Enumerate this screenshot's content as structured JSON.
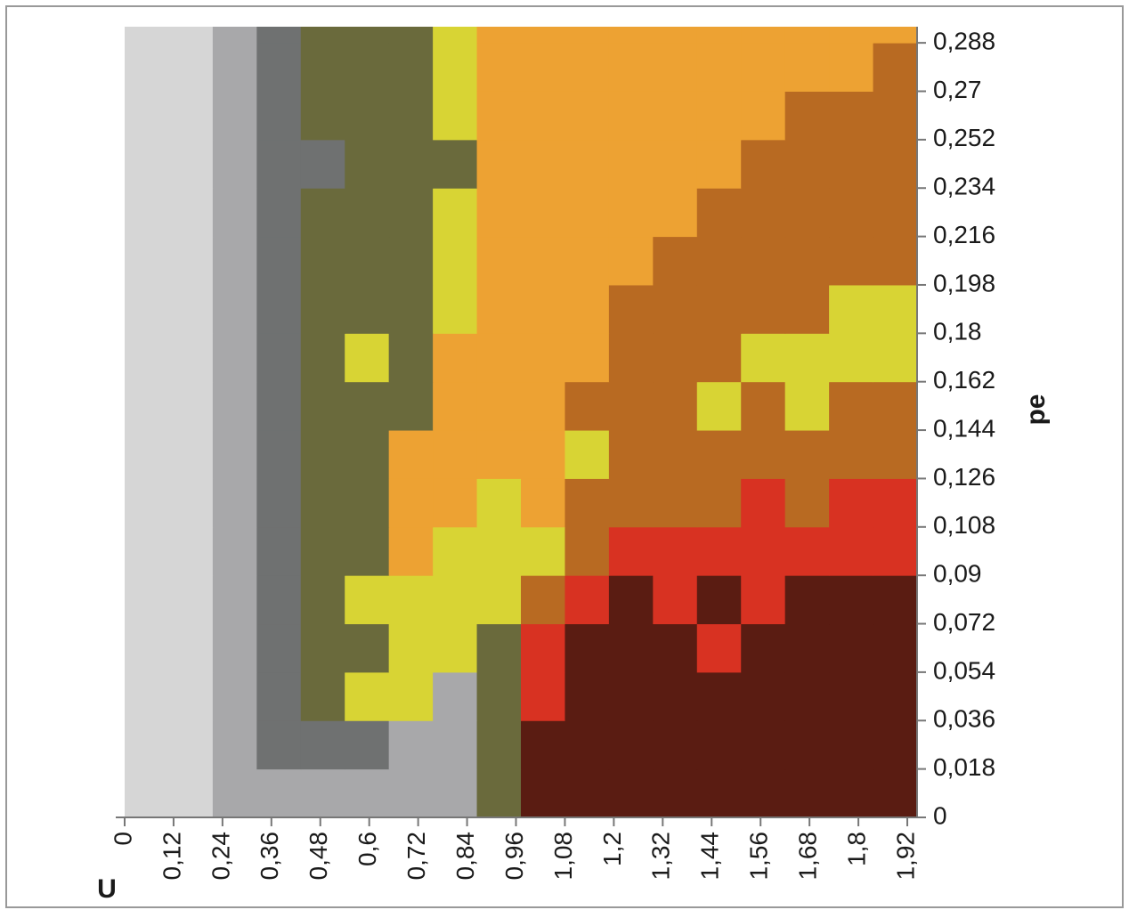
{
  "chart_data": {
    "type": "heatmap",
    "x_label": "U",
    "y_label": "pe",
    "xlim": [
      0,
      1.944
    ],
    "ylim": [
      0,
      0.294
    ],
    "xbins": [
      0,
      0.108,
      0.216,
      0.324,
      0.432,
      0.54,
      0.648,
      0.756,
      0.864,
      0.972,
      1.08,
      1.188,
      1.296,
      1.404,
      1.512,
      1.62,
      1.728,
      1.836,
      1.944
    ],
    "ybins": [
      0,
      0.018,
      0.036,
      0.054,
      0.072,
      0.09,
      0.108,
      0.126,
      0.144,
      0.162,
      0.18,
      0.198,
      0.216,
      0.234,
      0.252,
      0.27,
      0.288,
      0.294
    ],
    "colors": [
      "#d6d6d6",
      "#a8a8aa",
      "#6f7171",
      "#6a6a3c",
      "#d8d434",
      "#eda233",
      "#b86a22",
      "#d83222",
      "#5a1c12"
    ],
    "z": [
      [
        0,
        0,
        1,
        1,
        1,
        1,
        1,
        1,
        3,
        8,
        8,
        8,
        8,
        8,
        8,
        8,
        8,
        8
      ],
      [
        0,
        0,
        1,
        2,
        2,
        2,
        1,
        1,
        3,
        8,
        8,
        8,
        8,
        8,
        8,
        8,
        8,
        8
      ],
      [
        0,
        0,
        1,
        2,
        3,
        4,
        4,
        1,
        3,
        7,
        8,
        8,
        8,
        8,
        8,
        8,
        8,
        8
      ],
      [
        0,
        0,
        1,
        2,
        3,
        3,
        4,
        4,
        3,
        7,
        8,
        8,
        8,
        7,
        8,
        8,
        8,
        8
      ],
      [
        0,
        0,
        1,
        2,
        3,
        4,
        4,
        4,
        4,
        6,
        7,
        8,
        7,
        8,
        7,
        8,
        8,
        8
      ],
      [
        0,
        0,
        1,
        2,
        3,
        3,
        5,
        4,
        4,
        4,
        6,
        7,
        7,
        7,
        7,
        7,
        7,
        7
      ],
      [
        0,
        0,
        1,
        2,
        3,
        3,
        5,
        5,
        4,
        5,
        6,
        6,
        6,
        6,
        7,
        6,
        7,
        7
      ],
      [
        0,
        0,
        1,
        2,
        3,
        3,
        5,
        5,
        5,
        5,
        4,
        6,
        6,
        6,
        6,
        6,
        6,
        6
      ],
      [
        0,
        0,
        1,
        2,
        3,
        3,
        3,
        5,
        5,
        5,
        6,
        6,
        6,
        4,
        6,
        4,
        6,
        6
      ],
      [
        0,
        0,
        1,
        2,
        3,
        4,
        3,
        5,
        5,
        5,
        5,
        6,
        6,
        6,
        4,
        4,
        4,
        4
      ],
      [
        0,
        0,
        1,
        2,
        3,
        3,
        3,
        4,
        5,
        5,
        5,
        6,
        6,
        6,
        6,
        6,
        4,
        4
      ],
      [
        0,
        0,
        1,
        2,
        3,
        3,
        3,
        4,
        5,
        5,
        5,
        5,
        6,
        6,
        6,
        6,
        6,
        6
      ],
      [
        0,
        0,
        1,
        2,
        3,
        3,
        3,
        4,
        5,
        5,
        5,
        5,
        5,
        6,
        6,
        6,
        6,
        6
      ],
      [
        0,
        0,
        1,
        2,
        2,
        3,
        3,
        3,
        5,
        5,
        5,
        5,
        5,
        5,
        6,
        6,
        6,
        6
      ],
      [
        0,
        0,
        1,
        2,
        3,
        3,
        3,
        4,
        5,
        5,
        5,
        5,
        5,
        5,
        5,
        6,
        6,
        6
      ],
      [
        0,
        0,
        1,
        2,
        3,
        3,
        3,
        4,
        5,
        5,
        5,
        5,
        5,
        5,
        5,
        5,
        5,
        6
      ],
      [
        0,
        0,
        1,
        2,
        3,
        3,
        3,
        4,
        5,
        5,
        5,
        5,
        5,
        5,
        5,
        5,
        5,
        5
      ]
    ],
    "xticks": [
      0,
      {
        "value": 0.12,
        "label": "0,12"
      },
      {
        "value": 0.24,
        "label": "0,24"
      },
      {
        "value": 0.36,
        "label": "0,36"
      },
      {
        "value": 0.48,
        "label": "0,48"
      },
      {
        "value": 0.6,
        "label": "0,6"
      },
      {
        "value": 0.72,
        "label": "0,72"
      },
      {
        "value": 0.84,
        "label": "0,84"
      },
      {
        "value": 0.96,
        "label": "0,96"
      },
      {
        "value": 1.08,
        "label": "1,08"
      },
      {
        "value": 1.2,
        "label": "1,2"
      },
      {
        "value": 1.32,
        "label": "1,32"
      },
      {
        "value": 1.44,
        "label": "1,44"
      },
      {
        "value": 1.56,
        "label": "1,56"
      },
      {
        "value": 1.68,
        "label": "1,68"
      },
      {
        "value": 1.8,
        "label": "1,8"
      },
      {
        "value": 1.92,
        "label": "1,92"
      }
    ],
    "yticks": [
      0,
      {
        "value": 0.018,
        "label": "0,018"
      },
      {
        "value": 0.036,
        "label": "0,036"
      },
      {
        "value": 0.054,
        "label": "0,054"
      },
      {
        "value": 0.072,
        "label": "0,072"
      },
      {
        "value": 0.09,
        "label": "0,09"
      },
      {
        "value": 0.108,
        "label": "0,108"
      },
      {
        "value": 0.126,
        "label": "0,126"
      },
      {
        "value": 0.144,
        "label": "0,144"
      },
      {
        "value": 0.162,
        "label": "0,162"
      },
      {
        "value": 0.18,
        "label": "0,18"
      },
      {
        "value": 0.198,
        "label": "0,198"
      },
      {
        "value": 0.216,
        "label": "0,216"
      },
      {
        "value": 0.234,
        "label": "0,234"
      },
      {
        "value": 0.252,
        "label": "0,252"
      },
      {
        "value": 0.27,
        "label": "0,27"
      },
      {
        "value": 0.288,
        "label": "0,288"
      }
    ]
  }
}
